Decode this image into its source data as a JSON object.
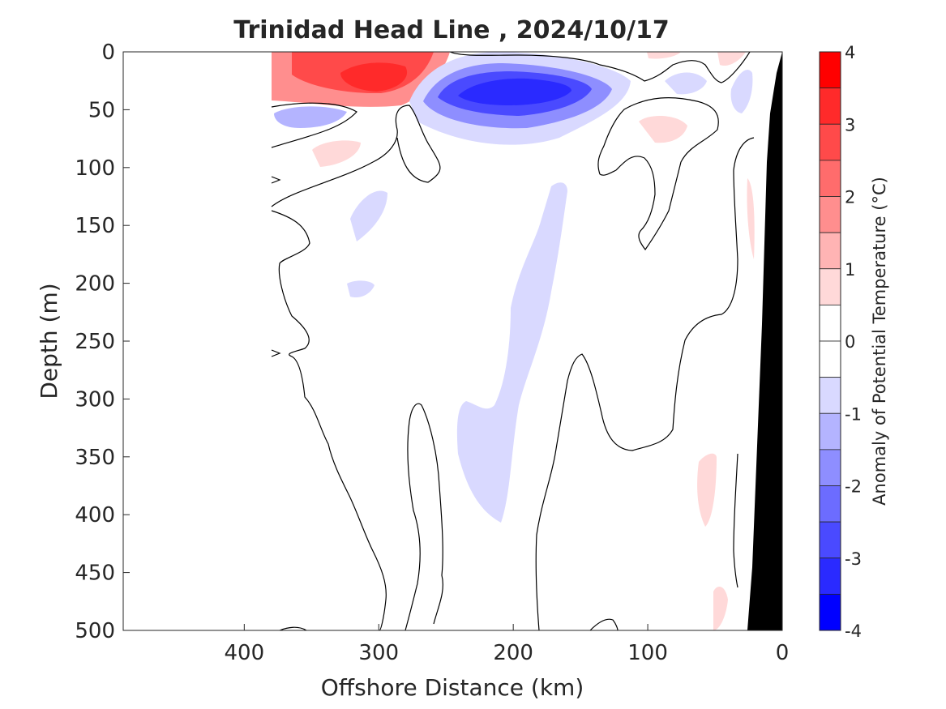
{
  "chart_data": {
    "type": "heatmap",
    "title": "Trinidad Head Line , 2024/10/17",
    "xlabel": "Offshore Distance (km)",
    "ylabel": "Depth (m)",
    "colorbar_label": "Anomaly of Potential Temperature (°C)",
    "xlim": [
      490,
      0
    ],
    "ylim": [
      0,
      500
    ],
    "x_reversed": true,
    "y_reversed": true,
    "x_ticks": [
      400,
      300,
      200,
      100,
      0
    ],
    "y_ticks": [
      0,
      50,
      100,
      150,
      200,
      250,
      300,
      350,
      400,
      450,
      500
    ],
    "colorbar_ticks": [
      4,
      3,
      2,
      1,
      0,
      -1,
      -2,
      -3,
      -4
    ],
    "colorbar_levels": [
      {
        "lo": 3.5,
        "hi": 4.0,
        "color": "#ff0000"
      },
      {
        "lo": 3.0,
        "hi": 3.5,
        "color": "#ff2a2a"
      },
      {
        "lo": 2.5,
        "hi": 3.0,
        "color": "#ff4a4a"
      },
      {
        "lo": 2.0,
        "hi": 2.5,
        "color": "#ff6c6c"
      },
      {
        "lo": 1.5,
        "hi": 2.0,
        "color": "#ff8e8e"
      },
      {
        "lo": 1.0,
        "hi": 1.5,
        "color": "#ffb4b4"
      },
      {
        "lo": 0.5,
        "hi": 1.0,
        "color": "#ffd9d9"
      },
      {
        "lo": 0.0,
        "hi": 0.5,
        "color": "#ffffff"
      },
      {
        "lo": -0.5,
        "hi": 0.0,
        "color": "#ffffff"
      },
      {
        "lo": -1.0,
        "hi": -0.5,
        "color": "#d9d9ff"
      },
      {
        "lo": -1.5,
        "hi": -1.0,
        "color": "#b4b4ff"
      },
      {
        "lo": -2.0,
        "hi": -1.5,
        "color": "#8e8eff"
      },
      {
        "lo": -2.5,
        "hi": -2.0,
        "color": "#6c6cff"
      },
      {
        "lo": -3.0,
        "hi": -2.5,
        "color": "#4a4aff"
      },
      {
        "lo": -3.5,
        "hi": -3.0,
        "color": "#2a2aff"
      },
      {
        "lo": -4.0,
        "hi": -3.5,
        "color": "#0000ff"
      }
    ],
    "data_extent_km": [
      380,
      0
    ],
    "bathymetry_color": "#000000",
    "contour_color": "#000000"
  }
}
